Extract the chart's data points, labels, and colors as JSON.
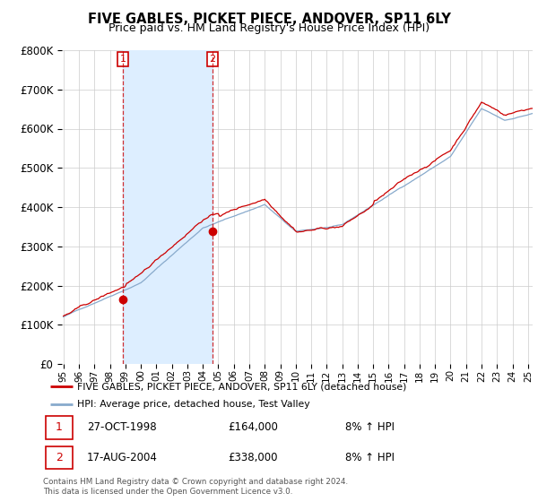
{
  "title": "FIVE GABLES, PICKET PIECE, ANDOVER, SP11 6LY",
  "subtitle": "Price paid vs. HM Land Registry's House Price Index (HPI)",
  "background_color": "#ffffff",
  "grid_color": "#cccccc",
  "sale1_date": "27-OCT-1998",
  "sale1_price": 164000,
  "sale1_label": "1",
  "sale1_hpi": "8% ↑ HPI",
  "sale2_date": "17-AUG-2004",
  "sale2_price": 338000,
  "sale2_label": "2",
  "sale2_hpi": "8% ↑ HPI",
  "legend_red": "FIVE GABLES, PICKET PIECE, ANDOVER, SP11 6LY (detached house)",
  "legend_blue": "HPI: Average price, detached house, Test Valley",
  "footnote": "Contains HM Land Registry data © Crown copyright and database right 2024.\nThis data is licensed under the Open Government Licence v3.0.",
  "red_color": "#cc0000",
  "blue_color": "#88aacc",
  "shade_color": "#ddeeff",
  "sale1_x": 1998.83,
  "sale2_x": 2004.63,
  "ylim": [
    0,
    800000
  ],
  "yticks": [
    0,
    100000,
    200000,
    300000,
    400000,
    500000,
    600000,
    700000,
    800000
  ],
  "xmin": 1994.9,
  "xmax": 2025.3
}
